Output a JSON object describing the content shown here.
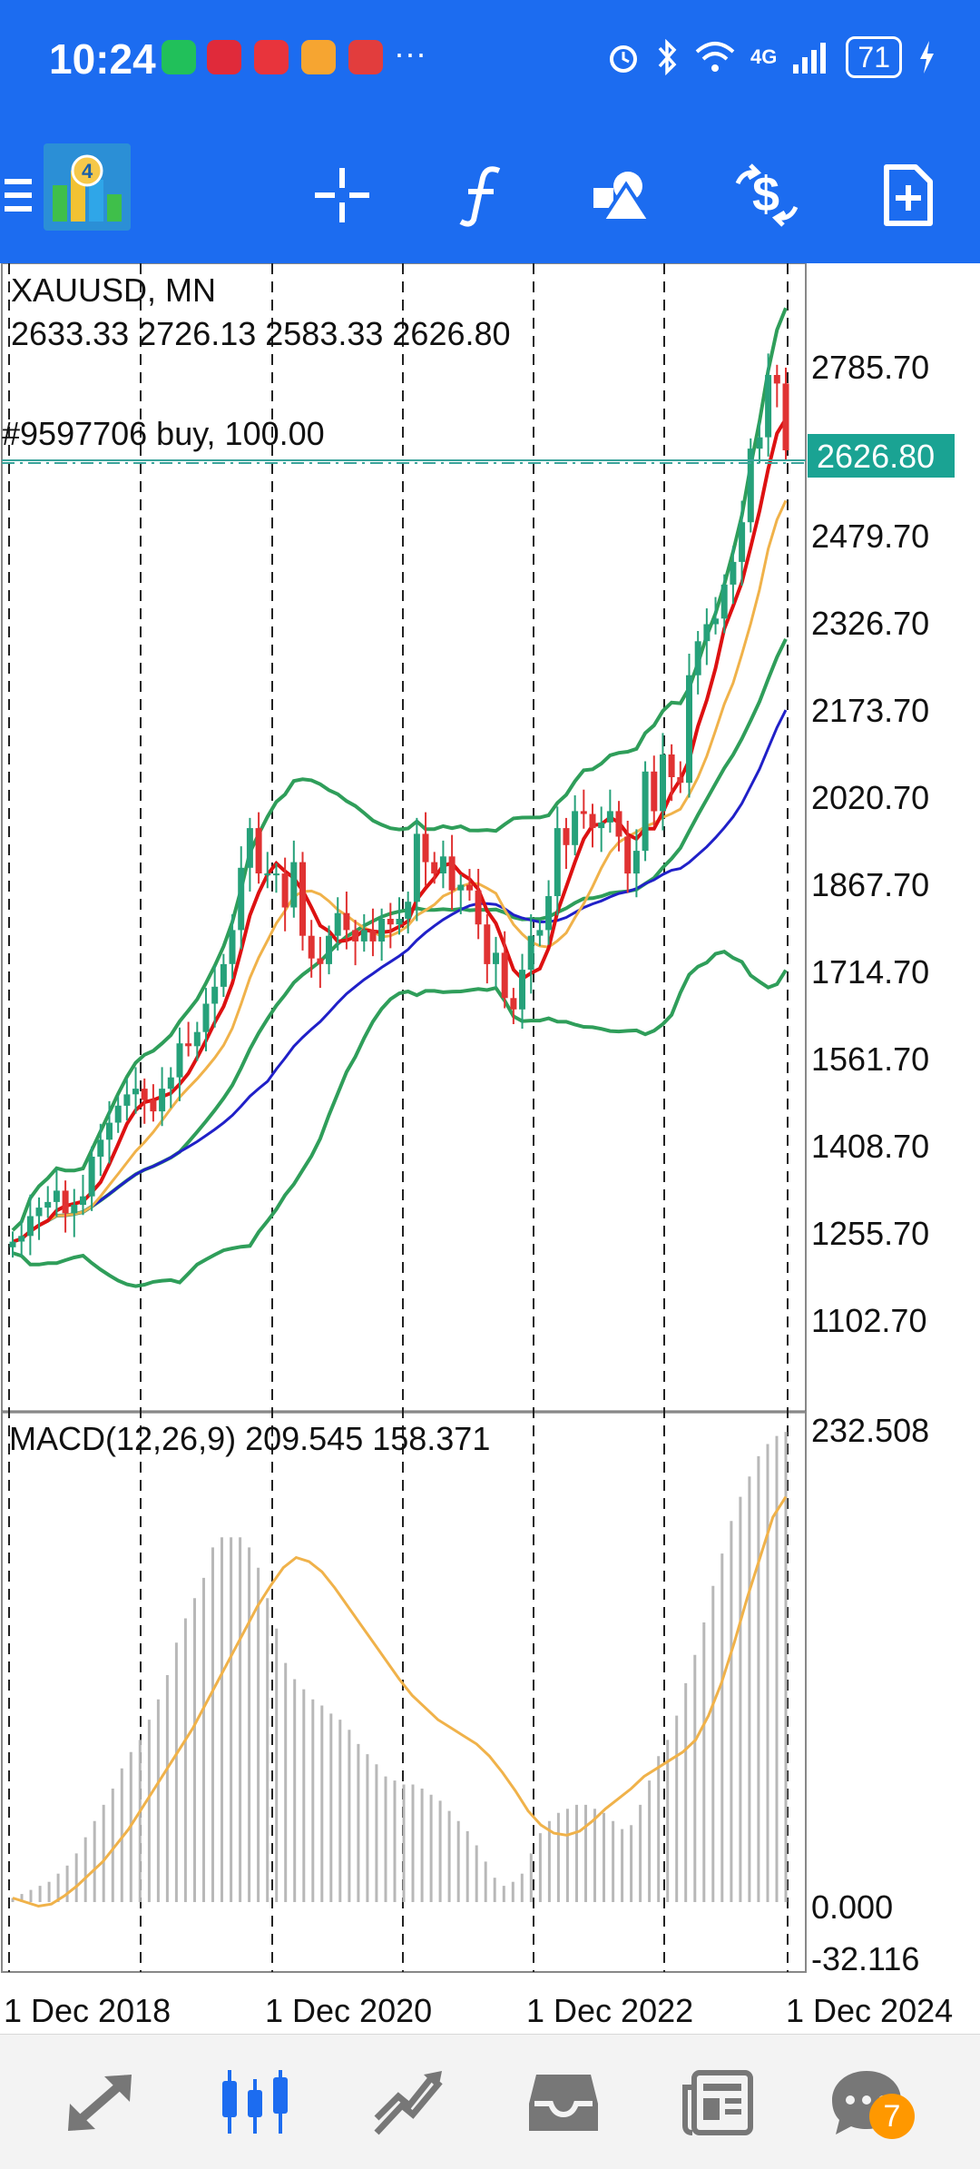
{
  "status_bar": {
    "time": "10:24",
    "dots": "···",
    "battery": "71",
    "network": "4G"
  },
  "toolbar": {
    "icons": [
      "menu-icon",
      "app-logo",
      "crosshair-icon",
      "indicators-icon",
      "objects-icon",
      "trade-icon",
      "new-order-icon"
    ]
  },
  "chart": {
    "symbol_label": "XAUUSD, MN",
    "ohlc_label": "2633.33 2726.13 2583.33 2626.80",
    "order_label": "#9597706 buy, 100.00",
    "current_price": "2626.80",
    "macd_label": "MACD(12,26,9) 209.545 158.371",
    "colors": {
      "bull": "#26a17a",
      "bear": "#e03232",
      "ma_red": "#dd1111",
      "ma_orange": "#f0b24a",
      "ma_blue": "#2020c8",
      "bands": "#2f9e5a",
      "price_tag": "#1aa393",
      "macd_signal": "#f0b24a",
      "macd_hist": "#b8b8b8"
    }
  },
  "chart_data": {
    "type": "candlestick",
    "symbol": "XAUUSD",
    "timeframe": "MN",
    "price_axis": {
      "ticks": [
        "2785.70",
        "2479.70",
        "2326.70",
        "2173.70",
        "2020.70",
        "1867.70",
        "1714.70",
        "1561.70",
        "1408.70",
        "1255.70",
        "1102.70"
      ],
      "range": [
        1000,
        2870
      ]
    },
    "macd_axis": {
      "ticks": [
        "232.508",
        "0.000",
        "-32.116"
      ],
      "range": [
        -32.116,
        232.508
      ]
    },
    "time_axis": {
      "labels": [
        "1 Dec 2018",
        "1 Dec 2020",
        "1 Dec 2022",
        "1 Dec 2024"
      ]
    },
    "closes": [
      1230,
      1240,
      1275,
      1290,
      1300,
      1320,
      1280,
      1295,
      1310,
      1380,
      1410,
      1440,
      1470,
      1490,
      1500,
      1480,
      1460,
      1500,
      1520,
      1580,
      1575,
      1600,
      1650,
      1680,
      1720,
      1780,
      1890,
      1960,
      1880,
      1880,
      1880,
      1820,
      1900,
      1770,
      1730,
      1720,
      1770,
      1810,
      1780,
      1760,
      1780,
      1760,
      1800,
      1790,
      1800,
      1830,
      1950,
      1900,
      1880,
      1910,
      1850,
      1860,
      1850,
      1790,
      1720,
      1740,
      1660,
      1640,
      1710,
      1770,
      1780,
      1840,
      1960,
      1930,
      1990,
      1985,
      1960,
      1970,
      1990,
      1945,
      1880,
      1920,
      2060,
      1990,
      2090,
      2050,
      2040,
      2230,
      2290,
      2320,
      2330,
      2390,
      2430,
      2500,
      2630,
      2650,
      2760,
      2745,
      2627
    ],
    "macd_hist": [
      2,
      4,
      6,
      8,
      10,
      14,
      18,
      24,
      32,
      40,
      48,
      56,
      66,
      74,
      80,
      90,
      100,
      112,
      128,
      140,
      150,
      160,
      175,
      180,
      180,
      180,
      175,
      165,
      150,
      135,
      118,
      110,
      105,
      100,
      97,
      93,
      90,
      85,
      78,
      73,
      68,
      62,
      60,
      58,
      58,
      56,
      53,
      50,
      45,
      40,
      35,
      28,
      20,
      12,
      8,
      10,
      14,
      24,
      34,
      40,
      44,
      46,
      48,
      48,
      46,
      44,
      40,
      36,
      38,
      48,
      60,
      72,
      80,
      92,
      108,
      122,
      138,
      156,
      172,
      188,
      200,
      210,
      220,
      226,
      230,
      232
    ],
    "macd_signal": [
      2,
      0,
      -2,
      -1,
      3,
      8,
      14,
      20,
      28,
      36,
      46,
      56,
      66,
      76,
      86,
      98,
      110,
      122,
      134,
      146,
      156,
      165,
      170,
      168,
      163,
      155,
      146,
      137,
      128,
      119,
      110,
      102,
      96,
      90,
      86,
      82,
      78,
      72,
      64,
      55,
      45,
      38,
      34,
      33,
      35,
      40,
      46,
      51,
      56,
      62,
      66,
      70,
      74,
      80,
      92,
      108,
      128,
      150,
      170,
      190,
      200
    ],
    "order": {
      "id": "#9597706",
      "side": "buy",
      "volume": "100.00"
    },
    "last_price": "2626.80"
  },
  "bottom_nav": {
    "items": [
      "quotes",
      "charts",
      "trade",
      "history",
      "news",
      "messages"
    ],
    "messages_badge": "7"
  }
}
